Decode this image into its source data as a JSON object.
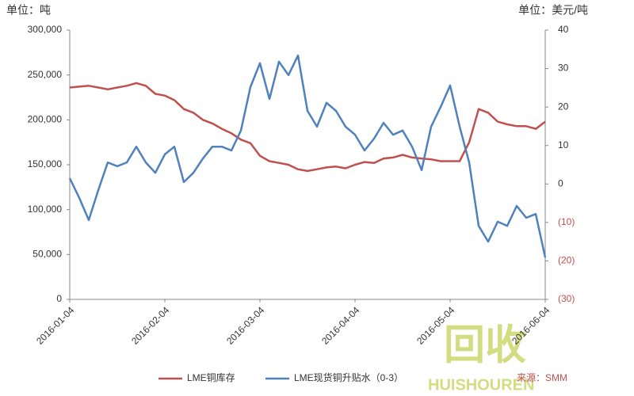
{
  "chart_data": {
    "type": "line",
    "y_unit_label": "单位：吨",
    "y2_unit_label": "单位：美元/吨",
    "source": "来源：SMM",
    "watermark": [
      "回收",
      "HUISHOUREN"
    ],
    "categories": [
      "2016-01-04",
      null,
      null,
      null,
      null,
      null,
      null,
      null,
      null,
      null,
      "2016-02-04",
      null,
      null,
      null,
      null,
      null,
      null,
      null,
      null,
      null,
      "2016-03-04",
      null,
      null,
      null,
      null,
      null,
      null,
      null,
      null,
      null,
      "2016-04-04",
      null,
      null,
      null,
      null,
      null,
      null,
      null,
      null,
      null,
      "2016-05-04",
      null,
      null,
      null,
      null,
      null,
      null,
      null,
      null,
      null,
      "2016-06-04"
    ],
    "ylim": [
      0,
      300000
    ],
    "yticks": [
      {
        "value": 0,
        "label": "0"
      },
      {
        "value": 50000,
        "label": "50,000"
      },
      {
        "value": 100000,
        "label": "100,000"
      },
      {
        "value": 150000,
        "label": "150,000"
      },
      {
        "value": 200000,
        "label": "200,000"
      },
      {
        "value": 250000,
        "label": "250,000"
      },
      {
        "value": 300000,
        "label": "300,000"
      }
    ],
    "y2lim": [
      -30,
      40
    ],
    "y2ticks": [
      {
        "value": -30,
        "label": "(30)"
      },
      {
        "value": -20,
        "label": "(20)"
      },
      {
        "value": -10,
        "label": "(10)"
      },
      0,
      10,
      20,
      30,
      40
    ],
    "y2_negative_color": "#c0504d",
    "grid": false,
    "series": [
      {
        "name": "LME铜库存",
        "color": "#c0504d",
        "values": [
          236000,
          237000,
          238000,
          236000,
          234000,
          236000,
          238000,
          241000,
          238000,
          229000,
          227000,
          222000,
          212000,
          208000,
          200000,
          196000,
          190000,
          185000,
          178000,
          174000,
          160000,
          154000,
          152000,
          150000,
          145000,
          143000,
          145000,
          147000,
          148000,
          146000,
          150000,
          153000,
          152000,
          157000,
          158000,
          161000,
          158000,
          157000,
          156000,
          154000,
          154000,
          154000,
          175000,
          212000,
          208000,
          198000,
          195000,
          193000,
          193000,
          190000,
          198000
        ]
      },
      {
        "name": "LME现货铜升贴水（0-3）",
        "color": "#4f81bd",
        "axis": "y2",
        "values": [
          1.5,
          -3.6,
          -9.4,
          -1.6,
          5.6,
          4.6,
          5.6,
          9.7,
          5.6,
          2.9,
          7.7,
          9.7,
          0.5,
          2.9,
          6.6,
          9.7,
          9.7,
          8.7,
          13.9,
          25.2,
          31.4,
          22.1,
          31.8,
          28.3,
          33.4,
          19.0,
          14.9,
          21.1,
          19.0,
          14.9,
          12.8,
          8.7,
          11.8,
          15.9,
          12.8,
          13.9,
          9.7,
          3.6,
          14.9,
          20.0,
          25.6,
          14.9,
          5.6,
          -10.9,
          -15.0,
          -9.8,
          -10.9,
          -5.7,
          -8.8,
          -7.8,
          -19.1
        ]
      }
    ]
  }
}
